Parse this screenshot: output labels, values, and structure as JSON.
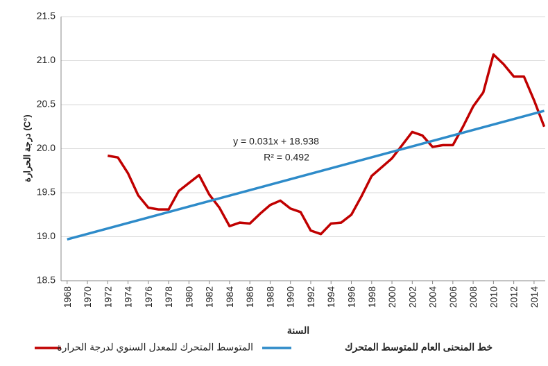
{
  "chart_data": {
    "type": "line",
    "ylabel": "درجة الحرارة (C°)",
    "xlabel": "السنة",
    "annotations": [
      "y = 0.031x + 18.938",
      "R² = 0.492"
    ],
    "xlim": [
      1967.4,
      2015.1
    ],
    "xticks": [
      1968,
      1970,
      1972,
      1974,
      1976,
      1978,
      1980,
      1982,
      1984,
      1986,
      1988,
      1990,
      1992,
      1994,
      1996,
      1998,
      2000,
      2002,
      2004,
      2006,
      2008,
      2010,
      2012,
      2014
    ],
    "ylim": [
      18.5,
      21.5
    ],
    "yticks": [
      18.5,
      {
        "value": 19,
        "label": "19.0"
      },
      19.5,
      {
        "value": 20,
        "label": "20.0"
      },
      20.5,
      {
        "value": 21,
        "label": "21.0"
      },
      21.5
    ],
    "grid": true,
    "legend": "bottom",
    "series": [
      {
        "name": "المتوسط المتحرك للمعدل السنوي لدرجة الحرارة",
        "color": "#c00000",
        "x": [
          1972,
          1973,
          1974,
          1975,
          1976,
          1977,
          1978,
          1979,
          1980,
          1981,
          1982,
          1983,
          1984,
          1985,
          1986,
          1987,
          1988,
          1989,
          1990,
          1991,
          1992,
          1993,
          1994,
          1995,
          1996,
          1997,
          1998,
          1999,
          2000,
          2001,
          2002,
          2003,
          2004,
          2005,
          2006,
          2007,
          2008,
          2009,
          2010,
          2011,
          2012,
          2013,
          2014,
          2015
        ],
        "values": [
          19.92,
          19.9,
          19.72,
          19.47,
          19.33,
          19.31,
          19.31,
          19.52,
          19.61,
          19.7,
          19.48,
          19.33,
          19.12,
          19.16,
          19.15,
          19.26,
          19.36,
          19.41,
          19.32,
          19.28,
          19.07,
          19.03,
          19.15,
          19.16,
          19.25,
          19.46,
          19.69,
          19.79,
          19.89,
          20.04,
          20.19,
          20.15,
          20.02,
          20.04,
          20.04,
          20.25,
          20.48,
          20.64,
          21.07,
          20.96,
          20.82,
          20.82,
          20.55,
          20.25
        ]
      },
      {
        "name": "خط المنحنى العام للمتوسط المتحرك",
        "color": "#2e8bc9",
        "x": [
          1968,
          2015
        ],
        "values": [
          18.97,
          20.43
        ]
      }
    ]
  }
}
